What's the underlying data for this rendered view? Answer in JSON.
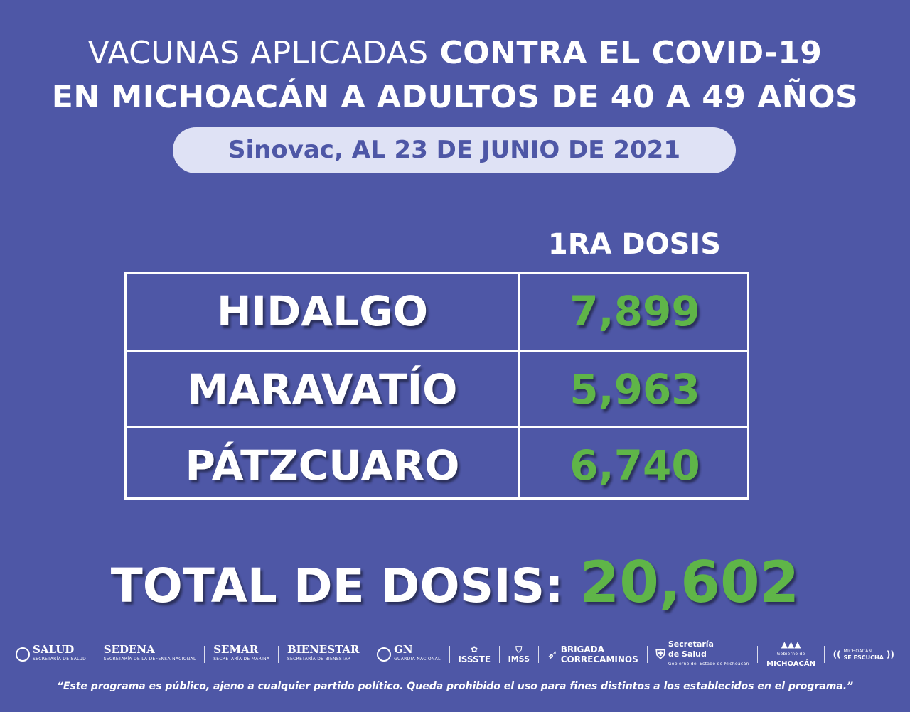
{
  "title": {
    "line1_light": "VACUNAS APLICADAS",
    "line1_bold": "CONTRA EL COVID-19",
    "line2": "EN MICHOACÁN A ADULTOS DE 40 A 49 AÑOS"
  },
  "subtitle": "Sinovac, AL 23 DE JUNIO DE 2021",
  "table": {
    "column_header": "1RA DOSIS",
    "rows": [
      {
        "name": "HIDALGO",
        "value": "7,899"
      },
      {
        "name": "MARAVATÍO",
        "value": "5,963"
      },
      {
        "name": "PÁTZCUARO",
        "value": "6,740"
      }
    ]
  },
  "total": {
    "label": "TOTAL DE DOSIS:",
    "value": "20,602"
  },
  "logos": {
    "salud": "SALUD",
    "salud_sub": "SECRETARÍA DE SALUD",
    "sedena": "SEDENA",
    "sedena_sub": "SECRETARÍA DE LA DEFENSA NACIONAL",
    "semar": "SEMAR",
    "semar_sub": "SECRETARÍA DE MARINA",
    "bienestar": "BIENESTAR",
    "bienestar_sub": "SECRETARÍA DE BIENESTAR",
    "gn": "GN",
    "gn_sub": "GUARDIA NACIONAL",
    "issste": "ISSSTE",
    "imss": "IMSS",
    "brigada_line1": "BRIGADA",
    "brigada_line2": "CORRECAMINOS",
    "secretaria_line1": "Secretaría",
    "secretaria_line2": "de Salud",
    "secretaria_sub": "Gobierno del Estado de Michoacán",
    "gobierno_line1": "Gobierno de",
    "gobierno_line2": "MICHOACÁN",
    "escucha_line1": "MICHOACÁN",
    "escucha_line2": "SE ESCUCHA"
  },
  "disclaimer": "“Este programa es público, ajeno a cualquier partido político. Queda prohibido el uso para fines distintos a los establecidos en el programa.”",
  "colors": {
    "background": "#4e57a6",
    "accent_green": "#5fb548",
    "pill_bg": "#dfe2f5"
  }
}
